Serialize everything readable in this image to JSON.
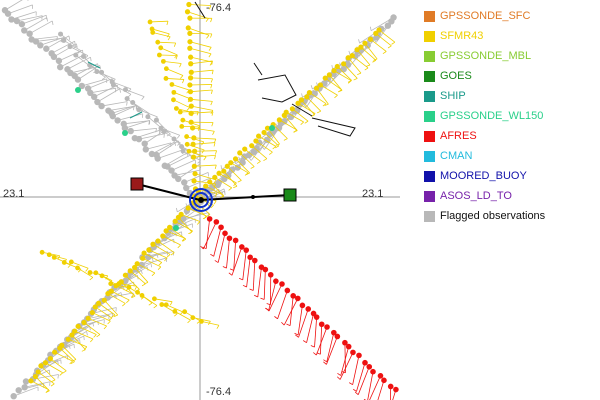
{
  "map": {
    "axis_labels": {
      "top": "-76.4",
      "bottom": "-76.4",
      "left": "23.1",
      "right": "23.1"
    }
  },
  "legend": {
    "items": [
      {
        "label": "GPSSONDE_SFC",
        "color": "#e07b26"
      },
      {
        "label": "SFMR43",
        "color": "#f0d000"
      },
      {
        "label": "GPSSONDE_MBL",
        "color": "#88cc33"
      },
      {
        "label": "GOES",
        "color": "#1a8a1a"
      },
      {
        "label": "SHIP",
        "color": "#1a9a8a"
      },
      {
        "label": "GPSSONDE_WL150",
        "color": "#2ad08a"
      },
      {
        "label": "AFRES",
        "color": "#ee1111"
      },
      {
        "label": "CMAN",
        "color": "#22bbdd"
      },
      {
        "label": "MOORED_BUOY",
        "color": "#1111aa"
      },
      {
        "label": "ASOS_LD_TO",
        "color": "#7722aa"
      },
      {
        "label": "Flagged observations",
        "color": "#b8b8b8"
      }
    ]
  },
  "colors": {
    "flagged": "#b8b8b8",
    "sfmr": "#f0d000",
    "afres": "#ee1111",
    "goes": "#1a8a1a",
    "gps_wl150": "#2ad08a",
    "ship": "#1a9a8a",
    "center_ring": "#1133cc",
    "buoy_left": "#9a1a1a"
  }
}
